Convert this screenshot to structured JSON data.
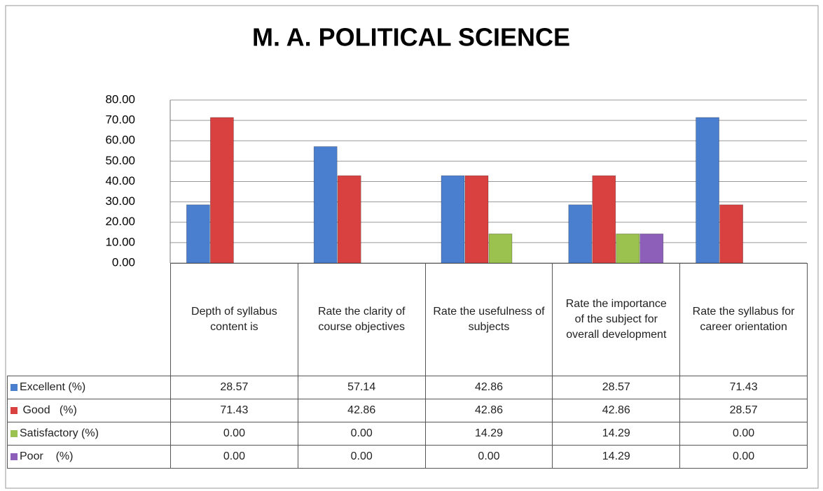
{
  "chart_data": {
    "type": "bar",
    "title": "M. A. POLITICAL SCIENCE",
    "categories": [
      "Depth of syllabus content is",
      "Rate the clarity of course objectives",
      "Rate the usefulness of subjects",
      "Rate the importance of the subject for overall development",
      "Rate the syllabus for career orientation"
    ],
    "series": [
      {
        "name": "Excellent (%)",
        "color": "#4a7fd0",
        "values": [
          28.57,
          57.14,
          42.86,
          28.57,
          71.43
        ],
        "value_labels": [
          "28.57",
          "57.14",
          "42.86",
          "28.57",
          "71.43"
        ]
      },
      {
        "name": " Good   (%)",
        "color": "#d94141",
        "values": [
          71.43,
          42.86,
          42.86,
          42.86,
          28.57
        ],
        "value_labels": [
          "71.43",
          "42.86",
          "42.86",
          "42.86",
          "28.57"
        ]
      },
      {
        "name": "Satisfactory (%)",
        "color": "#9bc24f",
        "values": [
          0,
          0,
          14.29,
          14.29,
          0
        ],
        "value_labels": [
          "0.00",
          "0.00",
          "14.29",
          "14.29",
          "0.00"
        ]
      },
      {
        "name": "Poor    (%)",
        "color": "#8e5fb8",
        "values": [
          0,
          0,
          0,
          14.29,
          0
        ],
        "value_labels": [
          "0.00",
          "0.00",
          "0.00",
          "14.29",
          "0.00"
        ]
      }
    ],
    "ylim": [
      0,
      80
    ],
    "yticks": [
      {
        "value": 0,
        "label": "0.00"
      },
      {
        "value": 10,
        "label": "10.00"
      },
      {
        "value": 20,
        "label": "20.00"
      },
      {
        "value": 30,
        "label": "30.00"
      },
      {
        "value": 40,
        "label": "40.00"
      },
      {
        "value": 50,
        "label": "50.00"
      },
      {
        "value": 60,
        "label": "60.00"
      },
      {
        "value": 70,
        "label": "70.00"
      },
      {
        "value": 80,
        "label": "80.00"
      }
    ],
    "grid": true
  }
}
